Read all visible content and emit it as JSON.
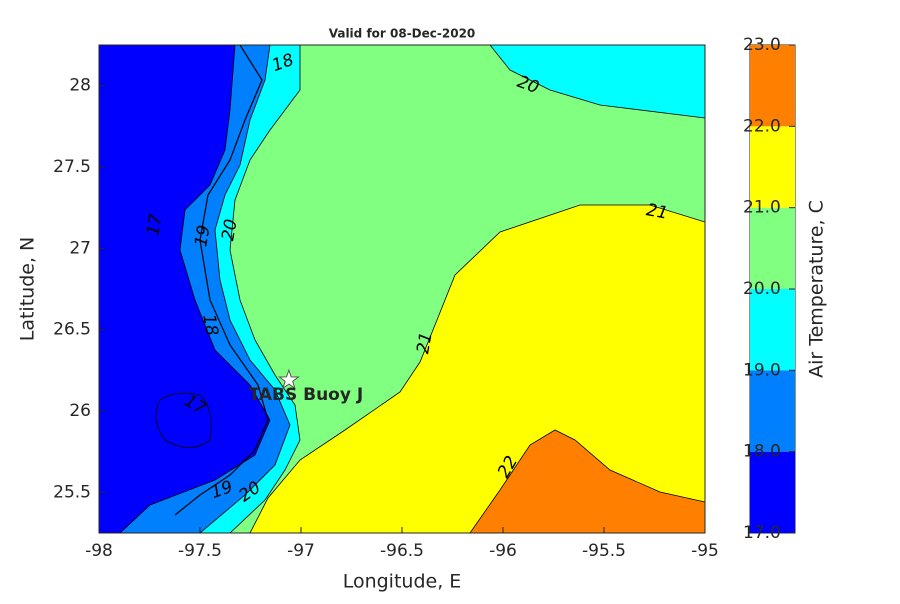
{
  "chart_data": {
    "type": "contour",
    "title": "Valid for 08-Dec-2020",
    "xlabel": "Longitude, E",
    "ylabel": "Latitude, N",
    "colorbar_label": "Air Temperature, C",
    "xlim": [
      -98,
      -95
    ],
    "xticks": [
      -98,
      -97.5,
      -97,
      -96.5,
      -96,
      -95.5,
      -95
    ],
    "ylim": [
      25.25,
      28.25
    ],
    "yticks": [
      25.5,
      26,
      26.5,
      27,
      27.5,
      28
    ],
    "clim": [
      17,
      23
    ],
    "cticks": [
      {
        "value": 17,
        "label": "17.0"
      },
      {
        "value": 18,
        "label": "18.0"
      },
      {
        "value": 19,
        "label": "19.0"
      },
      {
        "value": 20,
        "label": "20.0"
      },
      {
        "value": 21,
        "label": "21.0"
      },
      {
        "value": 22,
        "label": "22.0"
      },
      {
        "value": 23,
        "label": "23.0"
      }
    ],
    "level_colors": [
      "#0000ff",
      "#0080ff",
      "#00ffff",
      "#80ff80",
      "#ffff00",
      "#ff8000"
    ],
    "contour_labels": [
      20,
      21,
      21,
      22,
      17,
      17,
      18,
      18,
      19,
      20,
      20,
      19
    ],
    "marker": {
      "label": "TABS Buoy J",
      "x": -97.06,
      "y": 26.19
    }
  }
}
